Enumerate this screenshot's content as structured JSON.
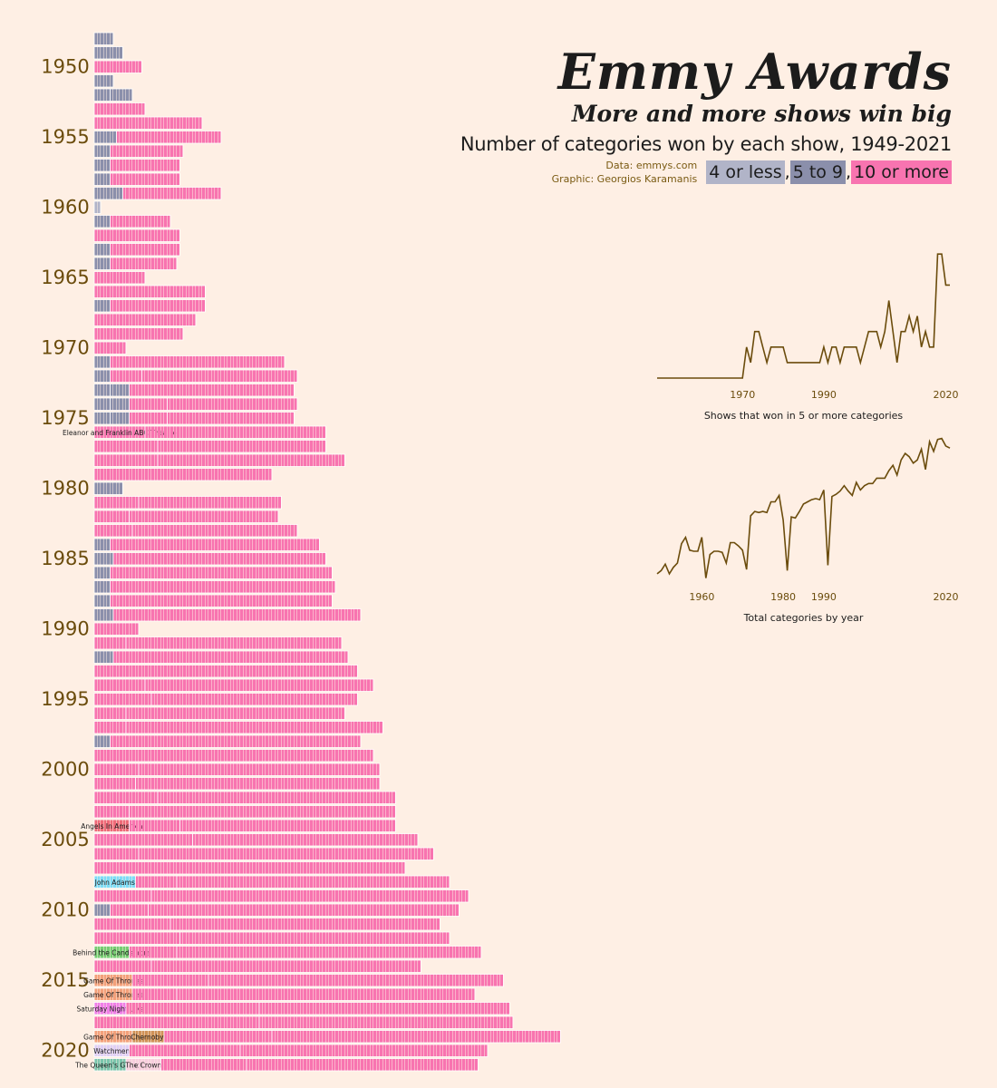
{
  "header": {
    "title": "Emmy Awards",
    "subtitle": "More and more shows win big",
    "description": "Number of categories won by each show, 1949-2021",
    "credit_data": "Data: emmys.com",
    "credit_graphic": "Graphic: Georgios Karamanis"
  },
  "legend": {
    "items": [
      {
        "label": "4 or less",
        "color": "#b1b4c8"
      },
      {
        "label": "5 to 9",
        "color": "#8b8fab"
      },
      {
        "label": "10 or more",
        "color": "#f874b0"
      }
    ],
    "separator": ","
  },
  "colors": {
    "background": "#feefe4",
    "line": "#6b4c0c",
    "year_label": "#6b4c0c",
    "cell_border": "#ffffff"
  },
  "chart_data": [
    {
      "type": "bar",
      "title": "",
      "year_labels": [
        "1950",
        "1955",
        "1960",
        "1965",
        "1970",
        "1975",
        "1980",
        "1985",
        "1990",
        "1995",
        "2000",
        "2005",
        "2010",
        "2015",
        "2020"
      ],
      "rows": [
        {
          "year": 1949,
          "shows": [
            6
          ]
        },
        {
          "year": 1950,
          "shows": [
            9
          ]
        },
        {
          "year": 1951,
          "shows": [
            15
          ]
        },
        {
          "year": 1952,
          "shows": [
            6
          ]
        },
        {
          "year": 1953,
          "shows": [
            5,
            7
          ]
        },
        {
          "year": 1954,
          "shows": [
            16
          ]
        },
        {
          "year": 1955,
          "shows": [
            34
          ]
        },
        {
          "year": 1956,
          "shows": [
            7,
            33
          ]
        },
        {
          "year": 1957,
          "shows": [
            5,
            23
          ]
        },
        {
          "year": 1958,
          "shows": [
            5,
            22
          ]
        },
        {
          "year": 1959,
          "shows": [
            5,
            22
          ]
        },
        {
          "year": 1960,
          "shows": [
            9,
            31
          ]
        },
        {
          "year": 1961,
          "shows": [
            2
          ]
        },
        {
          "year": 1962,
          "shows": [
            5,
            19
          ]
        },
        {
          "year": 1963,
          "shows": [
            27
          ]
        },
        {
          "year": 1964,
          "shows": [
            5,
            22
          ]
        },
        {
          "year": 1965,
          "shows": [
            5,
            21
          ]
        },
        {
          "year": 1966,
          "shows": [
            16
          ]
        },
        {
          "year": 1967,
          "shows": [
            35
          ]
        },
        {
          "year": 1968,
          "shows": [
            5,
            30
          ]
        },
        {
          "year": 1969,
          "shows": [
            32
          ]
        },
        {
          "year": 1970,
          "shows": [
            28
          ]
        },
        {
          "year": 1971,
          "shows": [
            10
          ]
        },
        {
          "year": 1972,
          "shows": [
            5,
            55
          ]
        },
        {
          "year": 1973,
          "shows": [
            5,
            10,
            49
          ]
        },
        {
          "year": 1974,
          "shows": [
            5,
            6,
            52
          ]
        },
        {
          "year": 1975,
          "shows": [
            5,
            6,
            12,
            41
          ]
        },
        {
          "year": 1976,
          "shows": [
            5,
            6,
            12,
            40
          ]
        },
        {
          "year": 1977,
          "shows": [
            {
              "v": 16,
              "c": "pink",
              "label": "Eleanor and Franklin ABC Theatre"
            },
            57
          ]
        },
        {
          "year": 1978,
          "shows": [
            20,
            53
          ]
        },
        {
          "year": 1979,
          "shows": [
            20,
            59
          ]
        },
        {
          "year": 1980,
          "shows": [
            56
          ]
        },
        {
          "year": 1981,
          "shows": [
            9
          ]
        },
        {
          "year": 1982,
          "shows": [
            14,
            45
          ]
        },
        {
          "year": 1983,
          "shows": [
            11,
            47
          ]
        },
        {
          "year": 1984,
          "shows": [
            12,
            52
          ]
        },
        {
          "year": 1985,
          "shows": [
            5,
            66
          ]
        },
        {
          "year": 1986,
          "shows": [
            6,
            67
          ]
        },
        {
          "year": 1987,
          "shows": [
            5,
            70
          ]
        },
        {
          "year": 1988,
          "shows": [
            5,
            71
          ]
        },
        {
          "year": 1989,
          "shows": [
            5,
            70
          ]
        },
        {
          "year": 1990,
          "shows": [
            6,
            78
          ]
        },
        {
          "year": 1991,
          "shows": [
            14
          ]
        },
        {
          "year": 1992,
          "shows": [
            10,
            68
          ]
        },
        {
          "year": 1993,
          "shows": [
            6,
            74
          ]
        },
        {
          "year": 1994,
          "shows": [
            83
          ]
        },
        {
          "year": 1995,
          "shows": [
            16,
            72
          ]
        },
        {
          "year": 1996,
          "shows": [
            18,
            65
          ]
        },
        {
          "year": 1997,
          "shows": [
            10,
            69
          ]
        },
        {
          "year": 1998,
          "shows": [
            10,
            81
          ]
        },
        {
          "year": 1999,
          "shows": [
            5,
            79
          ]
        },
        {
          "year": 2000,
          "shows": [
            88
          ]
        },
        {
          "year": 2001,
          "shows": [
            14,
            76
          ]
        },
        {
          "year": 2002,
          "shows": [
            13,
            77
          ]
        },
        {
          "year": 2003,
          "shows": [
            20,
            75
          ]
        },
        {
          "year": 2004,
          "shows": [
            11,
            84
          ]
        },
        {
          "year": 2005,
          "shows": [
            {
              "v": 11,
              "c": "red",
              "label": "Angels In America"
            },
            16,
            68
          ]
        },
        {
          "year": 2006,
          "shows": [
            31,
            71
          ]
        },
        {
          "year": 2007,
          "shows": [
            14,
            93
          ]
        },
        {
          "year": 2008,
          "shows": [
            98
          ]
        },
        {
          "year": 2009,
          "shows": [
            {
              "v": 13,
              "c": "cyan",
              "label": "John Adams"
            },
            13,
            86
          ]
        },
        {
          "year": 2010,
          "shows": [
            18,
            100
          ]
        },
        {
          "year": 2011,
          "shows": [
            5,
            12,
            98
          ]
        },
        {
          "year": 2012,
          "shows": [
            24,
            85
          ]
        },
        {
          "year": 2013,
          "shows": [
            27,
            85
          ]
        },
        {
          "year": 2014,
          "shows": [
            {
              "v": 11,
              "c": "green",
              "label": "Behind the Candelabra"
            },
            15,
            96
          ]
        },
        {
          "year": 2015,
          "shows": [
            18,
            85
          ]
        },
        {
          "year": 2016,
          "shows": [
            {
              "v": 12,
              "c": "orange",
              "label": "Game Of Thrones"
            },
            24,
            93
          ]
        },
        {
          "year": 2017,
          "shows": [
            {
              "v": 12,
              "c": "orange",
              "label": "Game Of Thrones"
            },
            14,
            94
          ]
        },
        {
          "year": 2018,
          "shows": [
            {
              "v": 10,
              "c": "magenta",
              "label": "Saturday Night Live"
            },
            42,
            79
          ]
        },
        {
          "year": 2019,
          "shows": [
            52,
            80
          ]
        },
        {
          "year": 2020,
          "shows": [
            {
              "v": 12,
              "c": "orange",
              "label": "Game Of Thrones"
            },
            {
              "v": 10,
              "c": "brown",
              "label": "Chernobyl"
            },
            34,
            91
          ]
        },
        {
          "year": 2021,
          "shows": [
            {
              "v": 11,
              "c": "lavender",
              "label": "Watchmen"
            },
            35,
            78
          ]
        },
        {
          "year": 2022,
          "shows": [
            {
              "v": 10,
              "c": "teal",
              "label": "The Queen's Gambit"
            },
            {
              "v": 11,
              "c": "lightpink",
              "label": "The Crown"
            },
            27,
            73
          ]
        }
      ],
      "highlight_colors": {
        "pink": "#f874b0",
        "red": "#ee6a78",
        "cyan": "#7ddcf6",
        "green": "#76cd72",
        "orange": "#f3a07a",
        "magenta": "#f07ee8",
        "brown": "#cf9156",
        "lavender": "#e0d0f6",
        "teal": "#7ac5ac",
        "lightpink": "#f8cede"
      }
    },
    {
      "type": "line",
      "title": "Shows that won in 5 or more categories",
      "x_ticks": [
        "1970",
        "1990",
        "2020"
      ],
      "x_tick_values": [
        1970,
        1990,
        2020
      ],
      "xlim": [
        1949,
        2021
      ],
      "ylim": [
        0,
        10
      ],
      "x": [
        1949,
        1950,
        1951,
        1952,
        1953,
        1954,
        1955,
        1956,
        1957,
        1958,
        1959,
        1960,
        1961,
        1962,
        1963,
        1964,
        1965,
        1966,
        1967,
        1968,
        1969,
        1970,
        1971,
        1972,
        1973,
        1974,
        1975,
        1976,
        1977,
        1978,
        1979,
        1980,
        1981,
        1982,
        1983,
        1984,
        1985,
        1986,
        1987,
        1988,
        1989,
        1990,
        1991,
        1992,
        1993,
        1994,
        1995,
        1996,
        1997,
        1998,
        1999,
        2000,
        2001,
        2002,
        2003,
        2004,
        2005,
        2006,
        2007,
        2008,
        2009,
        2010,
        2011,
        2012,
        2013,
        2014,
        2015,
        2016,
        2017,
        2018,
        2019,
        2020,
        2021
      ],
      "y": [
        0,
        0,
        0,
        0,
        0,
        0,
        0,
        0,
        0,
        0,
        0,
        0,
        0,
        0,
        0,
        0,
        0,
        0,
        0,
        0,
        0,
        0,
        2,
        1,
        3,
        3,
        2,
        1,
        2,
        2,
        2,
        2,
        1,
        1,
        1,
        1,
        1,
        1,
        1,
        1,
        1,
        2,
        1,
        2,
        2,
        1,
        2,
        2,
        2,
        2,
        1,
        2,
        3,
        3,
        3,
        2,
        3,
        5,
        3,
        1,
        3,
        3,
        4,
        3,
        4,
        2,
        3,
        2,
        2,
        8,
        8,
        6,
        6
      ]
    },
    {
      "type": "line",
      "title": "Total categories by year",
      "x_ticks": [
        "1960",
        "1980",
        "1990",
        "2020"
      ],
      "x_tick_values": [
        1960,
        1980,
        1990,
        2020
      ],
      "xlim": [
        1949,
        2021
      ],
      "ylim": [
        0,
        135
      ],
      "x": [
        1949,
        1950,
        1951,
        1952,
        1953,
        1954,
        1955,
        1956,
        1957,
        1958,
        1959,
        1960,
        1961,
        1962,
        1963,
        1964,
        1965,
        1966,
        1967,
        1968,
        1969,
        1970,
        1971,
        1972,
        1973,
        1974,
        1975,
        1976,
        1977,
        1978,
        1979,
        1980,
        1981,
        1982,
        1983,
        1984,
        1985,
        1986,
        1987,
        1988,
        1989,
        1990,
        1991,
        1992,
        1993,
        1994,
        1995,
        1996,
        1997,
        1998,
        1999,
        2000,
        2001,
        2002,
        2003,
        2004,
        2005,
        2006,
        2007,
        2008,
        2009,
        2010,
        2011,
        2012,
        2013,
        2014,
        2015,
        2016,
        2017,
        2018,
        2019,
        2020,
        2021
      ],
      "y": [
        6,
        9,
        15,
        6,
        12,
        16,
        34,
        40,
        28,
        27,
        27,
        40,
        2,
        24,
        27,
        27,
        26,
        16,
        35,
        35,
        32,
        28,
        10,
        60,
        64,
        63,
        64,
        63,
        73,
        73,
        79,
        56,
        9,
        59,
        58,
        64,
        71,
        73,
        75,
        76,
        75,
        84,
        14,
        78,
        80,
        83,
        88,
        83,
        79,
        91,
        84,
        88,
        90,
        90,
        95,
        95,
        95,
        102,
        107,
        98,
        112,
        118,
        115,
        109,
        112,
        122,
        103,
        129,
        120,
        131,
        132,
        125,
        123
      ]
    }
  ]
}
